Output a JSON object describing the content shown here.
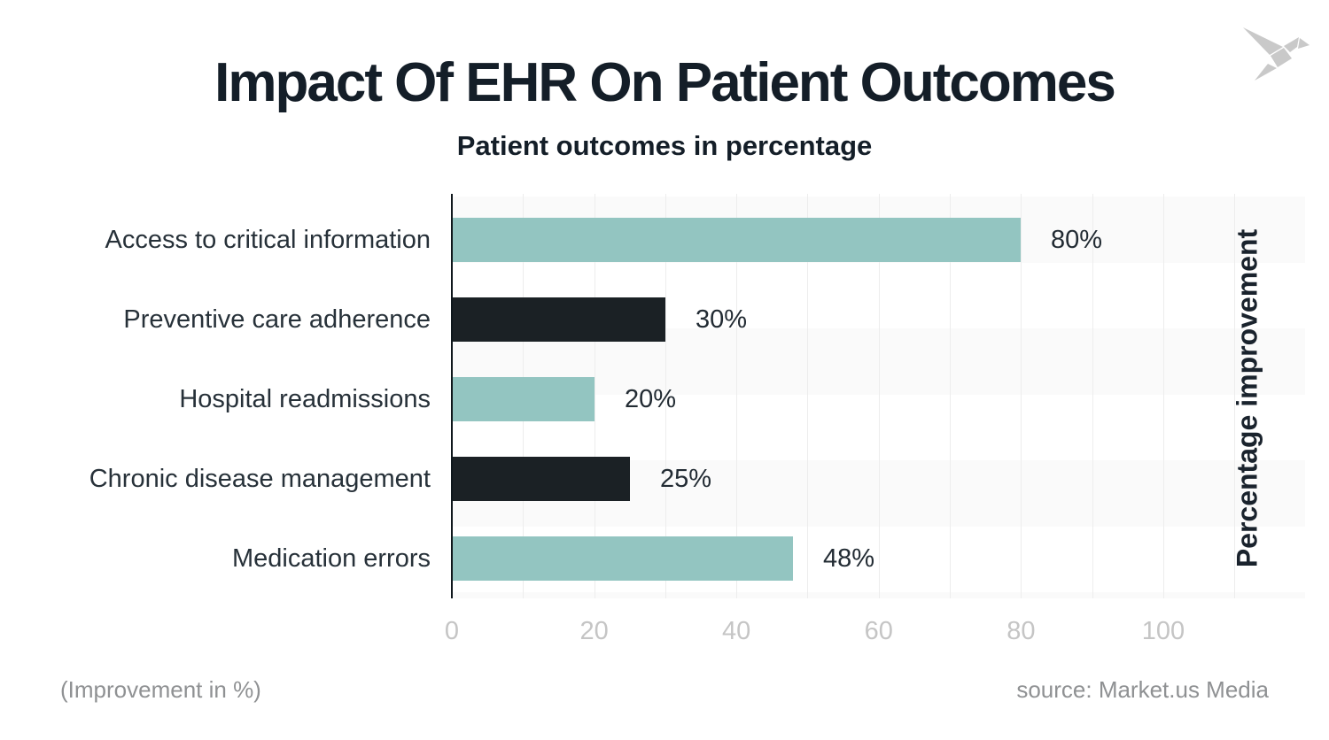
{
  "brand": {
    "logo_icon": "origami-bird-logo",
    "logo_color": "#c9c9c9"
  },
  "header": {
    "title": "Impact Of EHR On Patient Outcomes",
    "subtitle": "Patient outcomes in percentage"
  },
  "chart_data": {
    "type": "bar",
    "orientation": "horizontal",
    "title": "Impact Of EHR On Patient Outcomes",
    "subtitle": "Patient outcomes in percentage",
    "categories": [
      "Access to critical information",
      "Preventive care adherence",
      "Hospital readmissions",
      "Chronic disease management",
      "Medication errors"
    ],
    "values": [
      80,
      30,
      20,
      25,
      48
    ],
    "data_labels": [
      "80%",
      "30%",
      "20%",
      "25%",
      "48%"
    ],
    "bar_colors": [
      "#93c5c1",
      "#1b2125",
      "#93c5c1",
      "#1b2125",
      "#93c5c1"
    ],
    "x_ticks": [
      "0",
      "20",
      "40",
      "60",
      "80",
      "100"
    ],
    "x_tick_values": [
      0,
      20,
      40,
      60,
      80,
      100
    ],
    "xlim": [
      0,
      120
    ],
    "right_axis_label": "Percentage improvement",
    "grid": "vertical gridlines every 10 units; alternating light horizontal bands",
    "legend": "none"
  },
  "footer": {
    "left_note": "(Improvement in %)",
    "source": "source: Market.us Media"
  },
  "colors": {
    "teal_bar": "#93c5c1",
    "dark_bar": "#1b2125",
    "text_dark": "#141e28",
    "label_dark": "#273139",
    "tick_gray": "#c5c5c5",
    "muted_gray": "#8f9193",
    "stripe": "#fafafa",
    "gridline": "#ededed",
    "axis": "#10181d"
  }
}
